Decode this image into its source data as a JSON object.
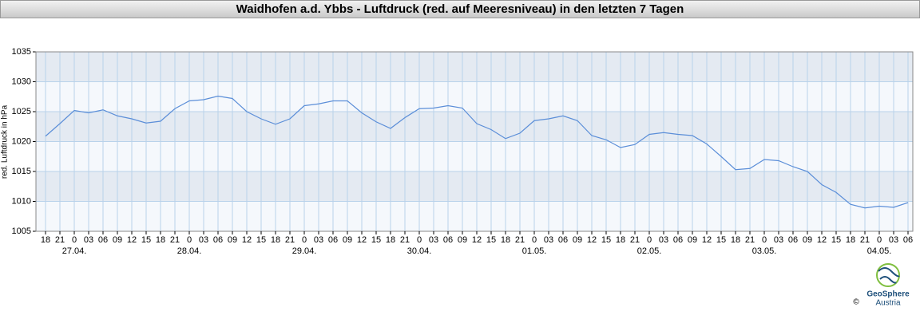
{
  "chart_data": {
    "type": "line",
    "title": "Waidhofen a.d. Ybbs - Luftdruck (red. auf Meeresniveau) in den letzten 7 Tagen",
    "y_label": "red. Luftdruck in hPa",
    "categories": [
      "18",
      "21",
      "0",
      "03",
      "06",
      "09",
      "12",
      "15",
      "18",
      "21",
      "0",
      "03",
      "06",
      "09",
      "12",
      "15",
      "18",
      "21",
      "0",
      "03",
      "06",
      "09",
      "12",
      "15",
      "18",
      "21",
      "0",
      "03",
      "06",
      "09",
      "12",
      "15",
      "18",
      "21",
      "0",
      "03",
      "06",
      "09",
      "12",
      "15",
      "18",
      "21",
      "0",
      "03",
      "06",
      "09",
      "12",
      "15",
      "18",
      "21",
      "0",
      "03",
      "06",
      "09",
      "12",
      "15",
      "18",
      "21",
      "0",
      "03",
      "06"
    ],
    "date_categories": [
      null,
      null,
      "27.04.",
      null,
      null,
      null,
      null,
      null,
      null,
      null,
      "28.04.",
      null,
      null,
      null,
      null,
      null,
      null,
      null,
      "29.04.",
      null,
      null,
      null,
      null,
      null,
      null,
      null,
      "30.04.",
      null,
      null,
      null,
      null,
      null,
      null,
      null,
      "01.05.",
      null,
      null,
      null,
      null,
      null,
      null,
      null,
      "02.05.",
      null,
      null,
      null,
      null,
      null,
      null,
      null,
      "03.05.",
      null,
      null,
      null,
      null,
      null,
      null,
      null,
      "04.05.",
      null,
      null
    ],
    "values": [
      1020.9,
      1023.0,
      1025.2,
      1024.8,
      1025.3,
      1024.3,
      1023.8,
      1023.1,
      1023.4,
      1025.5,
      1026.8,
      1027.0,
      1027.6,
      1027.2,
      1025.0,
      1023.8,
      1022.9,
      1023.8,
      1026.0,
      1026.3,
      1026.8,
      1026.8,
      1024.8,
      1023.3,
      1022.2,
      1024.0,
      1025.5,
      1025.6,
      1026.0,
      1025.6,
      1023.0,
      1022.0,
      1020.5,
      1021.4,
      1023.5,
      1023.8,
      1024.3,
      1023.5,
      1021.0,
      1020.3,
      1019.0,
      1019.5,
      1021.2,
      1021.5,
      1021.2,
      1021.0,
      1019.6,
      1017.5,
      1015.3,
      1015.5,
      1017.0,
      1016.8,
      1015.8,
      1015.0,
      1012.8,
      1011.5,
      1009.5,
      1008.9,
      1009.2,
      1009.0,
      1009.8
    ],
    "color": "#5b8ed8",
    "ylim": [
      1005,
      1035
    ],
    "yticks": [
      1005,
      1010,
      1015,
      1020,
      1025,
      1030,
      1035
    ],
    "grid": true,
    "source": {
      "name": "GeoSphere",
      "sub": "Austria",
      "copyright": "©"
    }
  }
}
